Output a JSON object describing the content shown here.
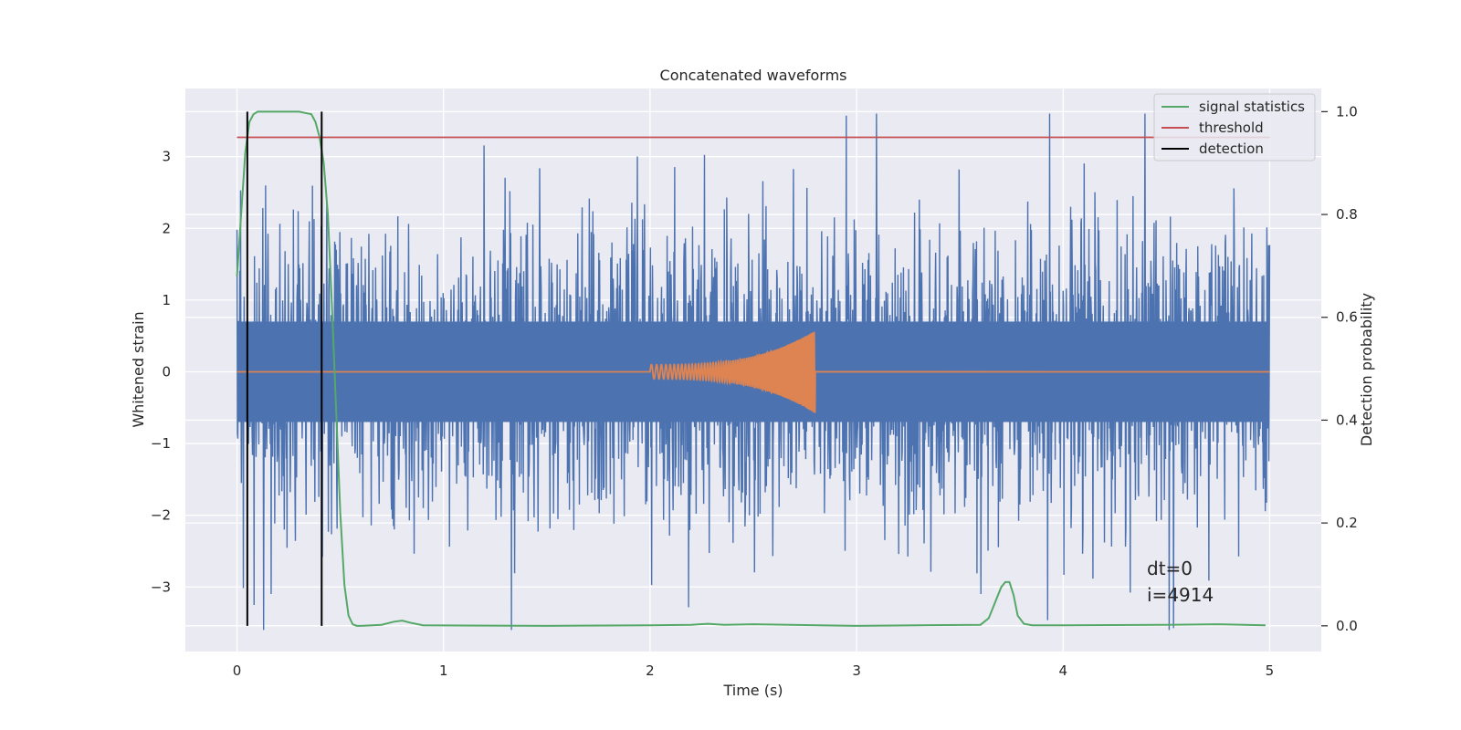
{
  "chart_data": {
    "type": "line",
    "title": "Concatenated waveforms",
    "xlabel": "Time (s)",
    "ylabel": "Whitened strain",
    "y2label": "Detection probability",
    "xlim": [
      -0.25,
      5.25
    ],
    "ylim": [
      -3.9,
      3.95
    ],
    "y2lim": [
      -0.05,
      1.045
    ],
    "xticks": [
      0,
      1,
      2,
      3,
      4,
      5
    ],
    "xtick_labels": [
      "0",
      "1",
      "2",
      "3",
      "4",
      "5"
    ],
    "yticks": [
      -3,
      -2,
      -1,
      0,
      1,
      2,
      3
    ],
    "ytick_labels": [
      "−3",
      "−2",
      "−1",
      "0",
      "1",
      "2",
      "3"
    ],
    "y2ticks": [
      0.0,
      0.2,
      0.4,
      0.6,
      0.8,
      1.0
    ],
    "y2tick_labels": [
      "0.0",
      "0.2",
      "0.4",
      "0.6",
      "0.8",
      "1.0"
    ],
    "grid": true,
    "legend_position": "top-right",
    "colors": {
      "noise": "#4c72b0",
      "waveform": "#dd8452",
      "signal_statistics": "#55a868",
      "threshold": "#c44e52",
      "detection": "#000000",
      "axes_background": "#eaeaf2"
    },
    "series": [
      {
        "name": "signal statistics",
        "axis": "right",
        "x": [
          0.0,
          0.02,
          0.04,
          0.06,
          0.08,
          0.1,
          0.12,
          0.2,
          0.3,
          0.36,
          0.38,
          0.4,
          0.42,
          0.44,
          0.46,
          0.48,
          0.5,
          0.52,
          0.54,
          0.56,
          0.58,
          0.6,
          0.7,
          0.76,
          0.8,
          0.84,
          0.9,
          1.5,
          2.0,
          2.2,
          2.28,
          2.36,
          2.5,
          3.0,
          3.6,
          3.64,
          3.67,
          3.7,
          3.72,
          3.74,
          3.76,
          3.78,
          3.81,
          3.85,
          4.0,
          4.5,
          4.75,
          4.98
        ],
        "values": [
          0.68,
          0.8,
          0.92,
          0.98,
          0.995,
          1.0,
          1.0,
          1.0,
          1.0,
          0.995,
          0.98,
          0.95,
          0.9,
          0.8,
          0.62,
          0.42,
          0.22,
          0.08,
          0.02,
          0.003,
          0.0,
          0.0,
          0.002,
          0.008,
          0.01,
          0.006,
          0.001,
          0.0,
          0.001,
          0.002,
          0.004,
          0.002,
          0.003,
          0.0,
          0.002,
          0.015,
          0.045,
          0.075,
          0.085,
          0.085,
          0.06,
          0.02,
          0.004,
          0.001,
          0.001,
          0.002,
          0.003,
          0.001
        ]
      },
      {
        "name": "threshold",
        "axis": "right",
        "x": [
          0.0,
          5.0
        ],
        "values": [
          0.95,
          0.95
        ]
      },
      {
        "name": "detection",
        "axis": "right",
        "type": "vlines",
        "x": [
          0.05,
          0.41
        ],
        "ymin": 0.0,
        "ymax": 1.0
      }
    ],
    "noise_series": {
      "axis": "left",
      "x_range": [
        0.0,
        5.0
      ],
      "approx_range": [
        -3.6,
        3.6
      ],
      "typical_band": [
        -0.7,
        0.7
      ]
    },
    "waveform_series": {
      "axis": "left",
      "x_start": 2.0,
      "x_end": 2.8,
      "start_amplitude": 0.1,
      "peak_amplitude": 0.58
    },
    "annotations": [
      "dt=0",
      "i=4914"
    ]
  }
}
